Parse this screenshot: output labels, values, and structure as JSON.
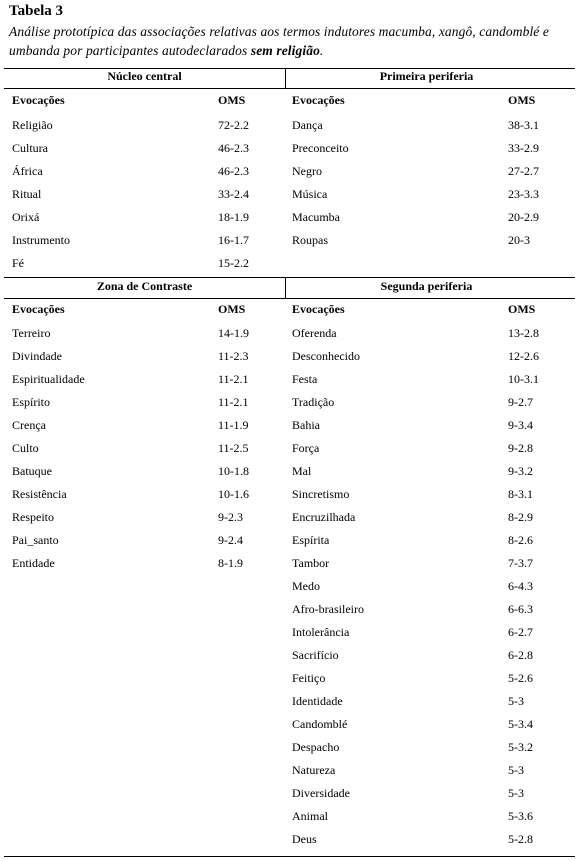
{
  "header": {
    "title": "Tabela 3",
    "caption": "Análise prototípica das associações relativas aos termos indutores macumba, xangô, candomblé e umbanda por participantes  autodeclarados ",
    "caption_emphasis": "sem religião",
    "caption_end": "."
  },
  "quadrants": [
    {
      "title": "Núcleo central",
      "columns": [
        "Evocações",
        "OMS"
      ],
      "rows": [
        [
          "Religião",
          "72-2.2"
        ],
        [
          "Cultura",
          "46-2.3"
        ],
        [
          "África",
          "46-2.3"
        ],
        [
          "Ritual",
          "33-2.4"
        ],
        [
          "Orixá",
          "18-1.9"
        ],
        [
          "Instrumento",
          "16-1.7"
        ],
        [
          "Fé",
          "15-2.2"
        ]
      ]
    },
    {
      "title": "Primeira periferia",
      "columns": [
        "Evocações",
        "OMS"
      ],
      "rows": [
        [
          "Dança",
          "38-3.1"
        ],
        [
          "Preconceito",
          "33-2.9"
        ],
        [
          "Negro",
          "27-2.7"
        ],
        [
          "Música",
          "23-3.3"
        ],
        [
          "Macumba",
          "20-2.9"
        ],
        [
          "Roupas",
          "20-3"
        ]
      ]
    },
    {
      "title": "Zona de Contraste",
      "columns": [
        "Evocações",
        "OMS"
      ],
      "rows": [
        [
          "Terreiro",
          "14-1.9"
        ],
        [
          "Divindade",
          "11-2.3"
        ],
        [
          "Espiritualidade",
          "11-2.1"
        ],
        [
          "Espírito",
          "11-2.1"
        ],
        [
          "Crença",
          "11-1.9"
        ],
        [
          "Culto",
          "11-2.5"
        ],
        [
          "Batuque",
          "10-1.8"
        ],
        [
          "Resistência",
          "10-1.6"
        ],
        [
          "Respeito",
          "9-2.3"
        ],
        [
          "Pai_santo",
          "9-2.4"
        ],
        [
          "Entidade",
          "8-1.9"
        ]
      ]
    },
    {
      "title": "Segunda periferia",
      "columns": [
        "Evocações",
        "OMS"
      ],
      "rows": [
        [
          "Oferenda",
          "13-2.8"
        ],
        [
          "Desconhecido",
          "12-2.6"
        ],
        [
          "Festa",
          "10-3.1"
        ],
        [
          "Tradição",
          "9-2.7"
        ],
        [
          "Bahia",
          "9-3.4"
        ],
        [
          "Força",
          "9-2.8"
        ],
        [
          "Mal",
          "9-3.2"
        ],
        [
          "Sincretismo",
          "8-3.1"
        ],
        [
          "Encruzilhada",
          "8-2.9"
        ],
        [
          "Espírita",
          "8-2.6"
        ],
        [
          "Tambor",
          "7-3.7"
        ],
        [
          "Medo",
          "6-4.3"
        ],
        [
          "Afro-brasileiro",
          "6-6.3"
        ],
        [
          "Intolerância",
          "6-2.7"
        ],
        [
          "Sacrifício",
          "6-2.8"
        ],
        [
          "Feitiço",
          "5-2.6"
        ],
        [
          "Identidade",
          "5-3"
        ],
        [
          "Candomblé",
          "5-3.4"
        ],
        [
          "Despacho",
          "5-3.2"
        ],
        [
          "Natureza",
          "5-3"
        ],
        [
          "Diversidade",
          "5-3"
        ],
        [
          "Animal",
          "5-3.6"
        ],
        [
          "Deus",
          "5-2.8"
        ]
      ]
    }
  ]
}
